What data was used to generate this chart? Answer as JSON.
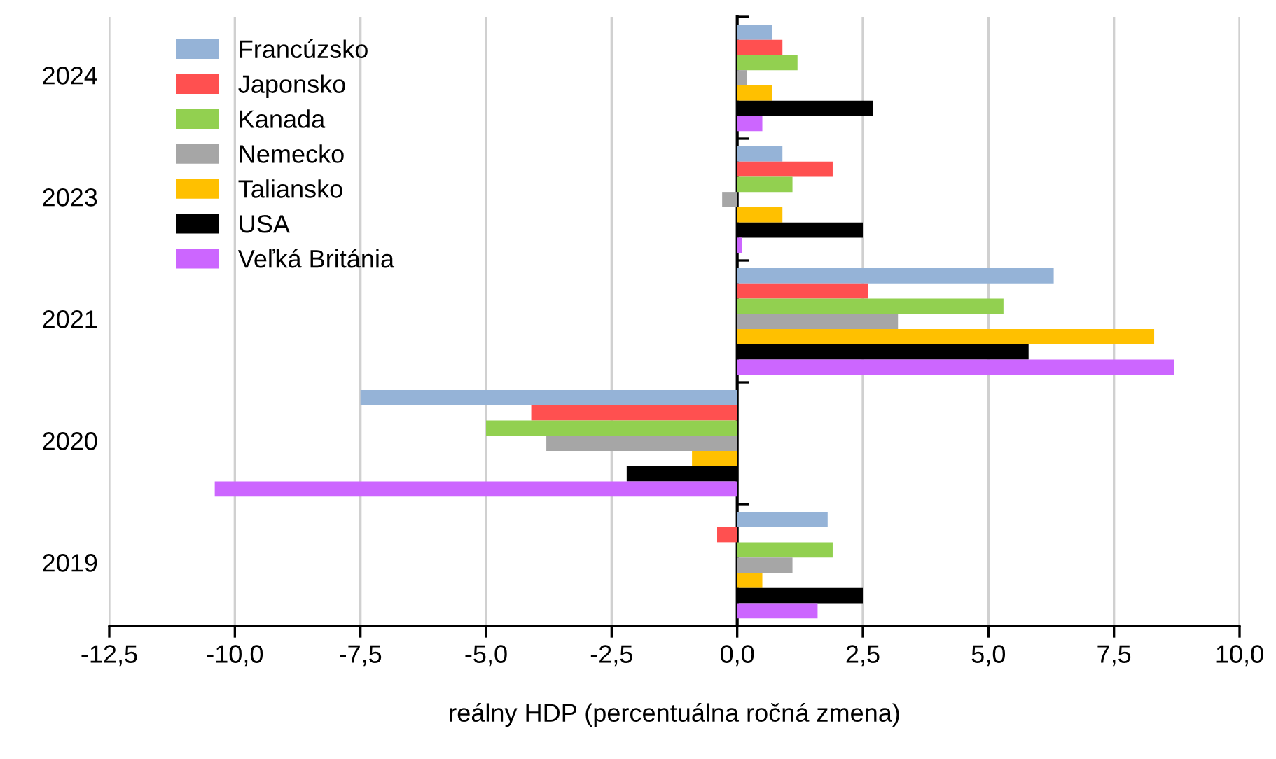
{
  "chart_data": {
    "type": "bar",
    "orientation": "horizontal",
    "xlabel": "reálny HDP (percentuálna ročná zmena)",
    "categories": [
      "2024",
      "2023",
      "2021",
      "2020",
      "2019"
    ],
    "series": [
      {
        "name": "Francúzsko",
        "color": "#95b3d7",
        "values": [
          0.7,
          0.9,
          6.3,
          -7.5,
          1.8
        ]
      },
      {
        "name": "Japonsko",
        "color": "#ff5050",
        "values": [
          0.9,
          1.9,
          2.6,
          -4.1,
          -0.4
        ]
      },
      {
        "name": "Kanada",
        "color": "#92d050",
        "values": [
          1.2,
          1.1,
          5.3,
          -5.0,
          1.9
        ]
      },
      {
        "name": "Nemecko",
        "color": "#a6a6a6",
        "values": [
          0.2,
          -0.3,
          3.2,
          -3.8,
          1.1
        ]
      },
      {
        "name": "Taliansko",
        "color": "#ffc000",
        "values": [
          0.7,
          0.9,
          8.3,
          -0.9,
          0.5
        ]
      },
      {
        "name": "USA",
        "color": "#000000",
        "values": [
          2.7,
          2.5,
          5.8,
          -2.2,
          2.5
        ]
      },
      {
        "name": "Veľká Británia",
        "color": "#cc66ff",
        "values": [
          0.5,
          0.1,
          8.7,
          -10.4,
          1.6
        ]
      }
    ],
    "xlim": [
      -12.5,
      10
    ],
    "xticks": [
      {
        "value": -12.5,
        "label": "-12,5"
      },
      {
        "value": -10,
        "label": "-10,0"
      },
      {
        "value": -7.5,
        "label": "-7,5"
      },
      {
        "value": -5,
        "label": "-5,0"
      },
      {
        "value": -2.5,
        "label": "-2,5"
      },
      {
        "value": 0,
        "label": "0,0"
      },
      {
        "value": 2.5,
        "label": "2,5"
      },
      {
        "value": 5,
        "label": "5,0"
      },
      {
        "value": 7.5,
        "label": "7,5"
      },
      {
        "value": 10,
        "label": "10,0"
      }
    ],
    "grid": "x",
    "legend": "top left"
  }
}
